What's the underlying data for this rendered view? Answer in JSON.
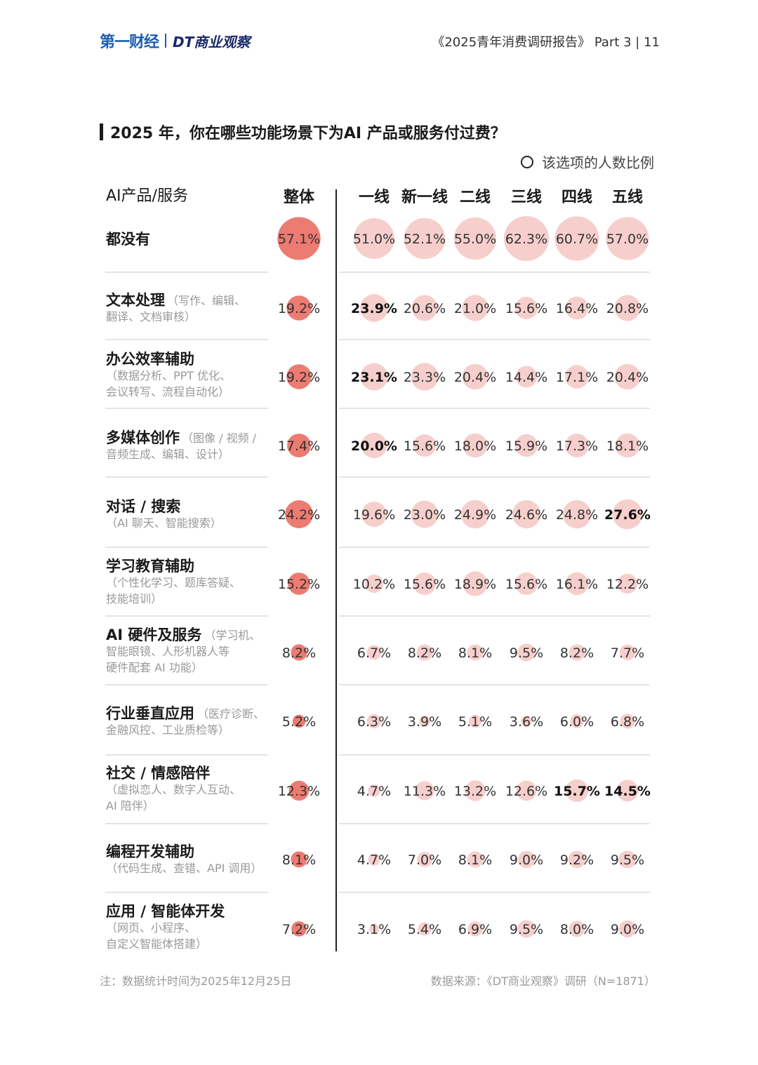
{
  "header": {
    "logo_primary": "第一财经",
    "logo_secondary": "DT商业观察",
    "report_title": "《2025青年消费调研报告》  Part 3  |  11"
  },
  "colors": {
    "overall_bubble": "#ec7b72",
    "tier_bubble": "#f6cfcc",
    "divider": "#222222",
    "row_rule": "#dcdcdc"
  },
  "chart_data": {
    "type": "table",
    "title": "2025 年，你在哪些功能场景下为AI 产品或服务付过费？",
    "legend_label": "该选项的人数比例",
    "row_header": "AI产品/服务",
    "columns": [
      "整体",
      "一线",
      "新一线",
      "二线",
      "三线",
      "四线",
      "五线"
    ],
    "rows": [
      {
        "name": "都没有",
        "desc": [],
        "values": [
          "57.1%",
          "51.0%",
          "52.1%",
          "55.0%",
          "62.3%",
          "60.7%",
          "57.0%"
        ],
        "bold": []
      },
      {
        "name": "文本处理",
        "name_note": "（写作、编辑、",
        "desc": [
          "翻译、文档审核）"
        ],
        "values": [
          "19.2%",
          "23.9%",
          "20.6%",
          "21.0%",
          "15.6%",
          "16.4%",
          "20.8%"
        ],
        "bold": [
          1
        ]
      },
      {
        "name": "办公效率辅助",
        "name_note": "",
        "desc": [
          "（数据分析、PPT 优化、",
          "会议转写、流程自动化）"
        ],
        "values": [
          "19.2%",
          "23.1%",
          "23.3%",
          "20.4%",
          "14.4%",
          "17.1%",
          "20.4%"
        ],
        "bold": [
          1
        ]
      },
      {
        "name": "多媒体创作",
        "name_note": "（图像 / 视频 /",
        "desc": [
          "音频生成、编辑、设计）"
        ],
        "values": [
          "17.4%",
          "20.0%",
          "15.6%",
          "18.0%",
          "15.9%",
          "17.3%",
          "18.1%"
        ],
        "bold": [
          1
        ]
      },
      {
        "name": "对话 / 搜索",
        "name_note": "",
        "desc": [
          "（AI 聊天、智能搜索）"
        ],
        "values": [
          "24.2%",
          "19.6%",
          "23.0%",
          "24.9%",
          "24.6%",
          "24.8%",
          "27.6%"
        ],
        "bold": [
          6
        ]
      },
      {
        "name": "学习教育辅助",
        "name_note": "",
        "desc": [
          "（个性化学习、题库答疑、",
          "技能培训）"
        ],
        "values": [
          "15.2%",
          "10.2%",
          "15.6%",
          "18.9%",
          "15.6%",
          "16.1%",
          "12.2%"
        ],
        "bold": []
      },
      {
        "name": "AI 硬件及服务",
        "name_note": "（学习机、",
        "desc": [
          "智能眼镜、人形机器人等",
          "硬件配套 AI 功能）"
        ],
        "values": [
          "8.2%",
          "6.7%",
          "8.2%",
          "8.1%",
          "9.5%",
          "8.2%",
          "7.7%"
        ],
        "bold": []
      },
      {
        "name": "行业垂直应用",
        "name_note": "（医疗诊断、",
        "desc": [
          "金融风控、工业质检等）"
        ],
        "values": [
          "5.2%",
          "6.3%",
          "3.9%",
          "5.1%",
          "3.6%",
          "6.0%",
          "6.8%"
        ],
        "bold": []
      },
      {
        "name": "社交 / 情感陪伴",
        "name_note": "",
        "desc": [
          "（虚拟恋人、数字人互动、",
          "AI 陪伴）"
        ],
        "values": [
          "12.3%",
          "4.7%",
          "11.3%",
          "13.2%",
          "12.6%",
          "15.7%",
          "14.5%"
        ],
        "bold": [
          5,
          6
        ]
      },
      {
        "name": "编程开发辅助",
        "name_note": "",
        "desc": [
          "（代码生成、查错、API 调用）"
        ],
        "values": [
          "8.1%",
          "4.7%",
          "7.0%",
          "8.1%",
          "9.0%",
          "9.2%",
          "9.5%"
        ],
        "bold": []
      },
      {
        "name": "应用 / 智能体开发",
        "name_note": "",
        "desc": [
          "（网页、小程序、",
          "自定义智能体搭建）"
        ],
        "values": [
          "7.2%",
          "3.1%",
          "5.4%",
          "6.9%",
          "9.5%",
          "8.0%",
          "9.0%"
        ],
        "bold": []
      }
    ]
  },
  "footer": {
    "note": "注：数据统计时间为2025年12月25日",
    "source": "数据来源：《DT商业观察》调研（N=1871）"
  }
}
